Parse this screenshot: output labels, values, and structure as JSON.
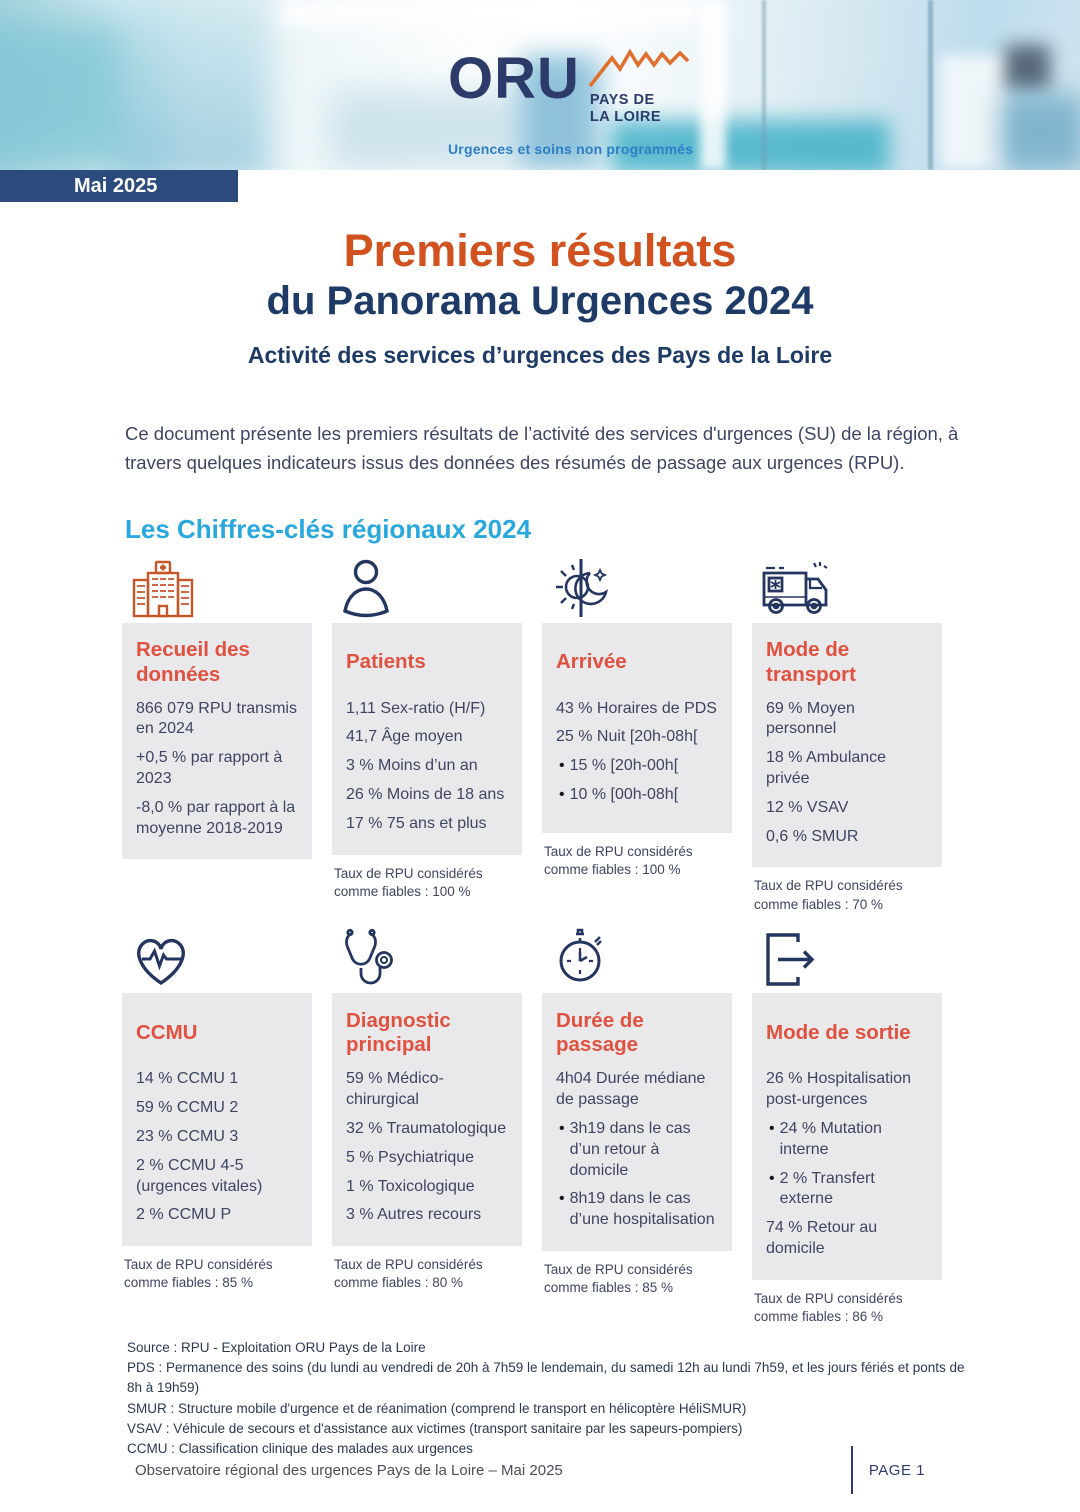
{
  "header": {
    "badge": "Mai 2025",
    "logo": {
      "name": "ORU",
      "region_line1": "PAYS DE",
      "region_line2": "LA LOIRE",
      "tagline": "Urgences et soins non programmés"
    }
  },
  "title": {
    "line1": "Premiers résultats",
    "line2": "du Panorama Urgences 2024",
    "subtitle": "Activité des services d’urgences des Pays de la Loire"
  },
  "intro": "Ce document présente les premiers résultats de l’activité des services d'urgences (SU) de la région, à travers quelques indicateurs issus des données des résumés de passage aux urgences (RPU).",
  "section_heading": "Les Chiffres-clés régionaux 2024",
  "cards": [
    {
      "icon": "hospital-icon",
      "title": "Recueil des données",
      "items": [
        {
          "text": "866 079 RPU transmis en 2024",
          "bullet": false
        },
        {
          "text": "+0,5 % par rapport à 2023",
          "bullet": false
        },
        {
          "text": "-8,0 % par rapport à la moyenne 2018-2019",
          "bullet": false
        }
      ],
      "reliability_note": ""
    },
    {
      "icon": "person-icon",
      "title": "Patients",
      "items": [
        {
          "text": "1,11 Sex-ratio (H/F)",
          "bullet": false
        },
        {
          "text": "41,7 Âge moyen",
          "bullet": false
        },
        {
          "text": "3 % Moins d’un an",
          "bullet": false
        },
        {
          "text": "26 % Moins de 18 ans",
          "bullet": false
        },
        {
          "text": "17 % 75 ans et plus",
          "bullet": false
        }
      ],
      "reliability_note": "Taux de RPU considérés comme fiables : 100 %"
    },
    {
      "icon": "day-night-icon",
      "title": "Arrivée",
      "items": [
        {
          "text": "43 % Horaires de PDS",
          "bullet": false
        },
        {
          "text": "25 % Nuit [20h-08h[",
          "bullet": false
        },
        {
          "text": "15 % [20h-00h[",
          "bullet": true
        },
        {
          "text": "10 % [00h-08h[",
          "bullet": true
        }
      ],
      "reliability_note": "Taux de RPU considérés comme fiables : 100 %"
    },
    {
      "icon": "ambulance-icon",
      "title": "Mode de transport",
      "items": [
        {
          "text": "69 % Moyen personnel",
          "bullet": false
        },
        {
          "text": "18 % Ambulance privée",
          "bullet": false
        },
        {
          "text": "12 % VSAV",
          "bullet": false
        },
        {
          "text": "0,6 % SMUR",
          "bullet": false
        }
      ],
      "reliability_note": "Taux de RPU considérés comme fiables : 70 %"
    },
    {
      "icon": "heart-pulse-icon",
      "title": "CCMU",
      "items": [
        {
          "text": "14 % CCMU 1",
          "bullet": false
        },
        {
          "text": "59 % CCMU 2",
          "bullet": false
        },
        {
          "text": "23 % CCMU 3",
          "bullet": false
        },
        {
          "text": "2 % CCMU 4-5 (urgences vitales)",
          "bullet": false
        },
        {
          "text": "2 % CCMU P",
          "bullet": false
        }
      ],
      "reliability_note": "Taux de RPU considérés comme fiables : 85 %"
    },
    {
      "icon": "stethoscope-icon",
      "title": "Diagnostic principal",
      "items": [
        {
          "text": "59 % Médico-chirurgical",
          "bullet": false
        },
        {
          "text": "32 % Traumatologique",
          "bullet": false
        },
        {
          "text": "5 % Psychiatrique",
          "bullet": false
        },
        {
          "text": "1 % Toxicologique",
          "bullet": false
        },
        {
          "text": "3 % Autres recours",
          "bullet": false
        }
      ],
      "reliability_note": "Taux de RPU considérés comme fiables : 80 %"
    },
    {
      "icon": "stopwatch-icon",
      "title": "Durée de passage",
      "items": [
        {
          "text": "4h04 Durée médiane de passage",
          "bullet": false
        },
        {
          "text": "3h19 dans le cas d’un retour à domicile",
          "bullet": true
        },
        {
          "text": "8h19 dans le cas d’une hospitalisation",
          "bullet": true
        }
      ],
      "reliability_note": "Taux de RPU considérés comme fiables : 85 %"
    },
    {
      "icon": "exit-door-icon",
      "title": "Mode de sortie",
      "items": [
        {
          "text": "26 % Hospitalisation post-urgences",
          "bullet": false
        },
        {
          "text": "24 % Mutation interne",
          "bullet": true
        },
        {
          "text": "2 % Transfert externe",
          "bullet": true
        },
        {
          "text": "74 % Retour au domicile",
          "bullet": false
        }
      ],
      "reliability_note": "Taux de RPU considérés comme fiables : 86 %"
    }
  ],
  "footnotes": [
    "Source : RPU - Exploitation ORU Pays de la Loire",
    "PDS : Permanence des soins (du lundi au vendredi de 20h à 7h59 le lendemain, du samedi 12h au lundi 7h59, et les jours fériés et ponts de 8h à 19h59)",
    "SMUR : Structure mobile d'urgence et de réanimation (comprend le transport en hélicoptère HéliSMUR)",
    "VSAV : Véhicule de secours et d'assistance aux victimes (transport sanitaire par les sapeurs-pompiers)",
    "CCMU : Classification clinique des malades aux urgences"
  ],
  "footer": {
    "left": "Observatoire régional des urgences Pays de la Loire – Mai 2025",
    "page": "PAGE 1"
  },
  "colors": {
    "accent_orange": "#d2521f",
    "card_title_orange": "#e0523f",
    "navy": "#1e3a66",
    "cyan_heading": "#29a8de",
    "badge_bg": "#2b4b7d",
    "body_text": "#3e4562",
    "card_bg": "#e9e8ea"
  }
}
